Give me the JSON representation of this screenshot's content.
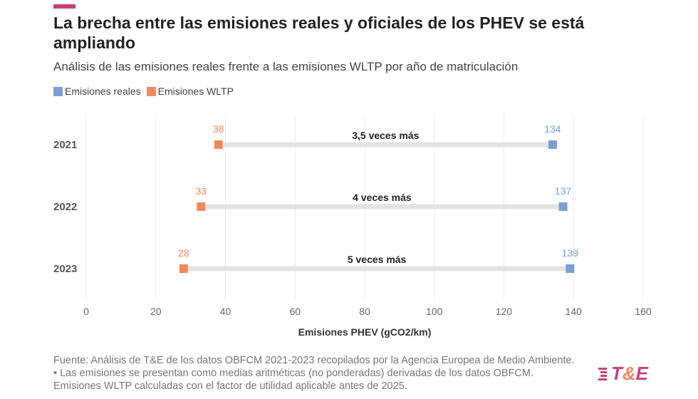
{
  "header": {
    "title": "La brecha entre las emisiones reales y oficiales de los PHEV se está ampliando",
    "subtitle": "Análisis de las emisiones reales frente a las emisiones WLTP por año de matriculación"
  },
  "colors": {
    "accent": "#c8407a",
    "real": "#7b9fd4",
    "wltp": "#f08a5d",
    "gap": "#e3e3e3"
  },
  "chart_data": {
    "type": "dumbbell",
    "xlabel": "Emisiones PHEV (gCO2/km)",
    "xlim": [
      0,
      160
    ],
    "xticks": [
      0,
      20,
      40,
      60,
      80,
      100,
      120,
      140,
      160
    ],
    "grid": true,
    "legend_placement": "top-left",
    "categories": [
      "2021",
      "2022",
      "2023"
    ],
    "series": [
      {
        "name": "Emisiones reales",
        "values": [
          134,
          137,
          139
        ]
      },
      {
        "name": "Emisiones WLTP",
        "values": [
          38,
          33,
          28
        ]
      }
    ],
    "annotations": [
      "3,5 veces más",
      "4 veces más",
      "5 veces más"
    ]
  },
  "footer": {
    "source": "Fuente: Análisis de T&E de los datos OBFCM 2021-2023 recopilados por la Agencia Europea de Medio Ambiente. • Las emisiones se presentan como medias aritméticas (no ponderadas) derivadas de los datos OBFCM. Emisiones WLTP calculadas con el factor de utilidad aplicable antes de 2025.",
    "logo_text": "T&E"
  }
}
